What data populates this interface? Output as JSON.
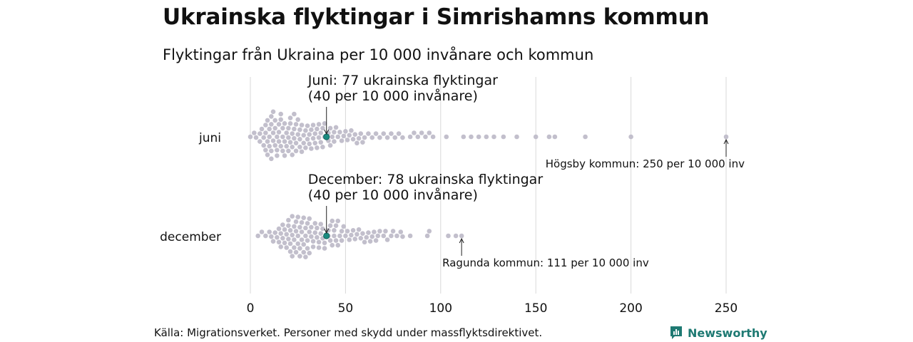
{
  "header": {
    "title": "Ukrainska flyktingar i Simrishamns kommun",
    "subtitle": "Flyktingar från Ukraina per 10 000 invånare och kommun"
  },
  "footer": {
    "source": "Källa: Migrationsverket. Personer med skydd under massflyktsdirektivet.",
    "logo_text": "Newsworthy"
  },
  "colors": {
    "dot": "#c2bfcc",
    "highlight": "#1a8a7f",
    "gridline": "#d9d9d9",
    "logo": "#1f7a73"
  },
  "chart_data": {
    "type": "scatter",
    "title": "Ukrainska flyktingar i Simrishamns kommun",
    "subtitle": "Flyktingar från Ukraina per 10 000 invånare och kommun",
    "xlim": [
      0,
      250
    ],
    "x_ticks": [
      "0",
      "50",
      "100",
      "150",
      "200",
      "250"
    ],
    "x_tick_values": [
      0,
      50,
      100,
      150,
      200,
      250
    ],
    "grid": true,
    "categories": [
      "juni",
      "december"
    ],
    "series": [
      {
        "name": "juni",
        "highlight": 40,
        "annotation": [
          "Juni: 77 ukrainska flyktingar",
          "(40 per 10 000 invånare)"
        ],
        "max_label": "Högsby kommun: 250 per 10 000 inv",
        "max_value": 250,
        "values": [
          0,
          2,
          3,
          5,
          5,
          6,
          7,
          7,
          8,
          8,
          8,
          9,
          9,
          9,
          10,
          10,
          10,
          11,
          11,
          11,
          11,
          12,
          12,
          12,
          13,
          13,
          13,
          14,
          14,
          14,
          15,
          15,
          15,
          16,
          16,
          16,
          17,
          17,
          17,
          18,
          18,
          18,
          19,
          19,
          20,
          20,
          20,
          21,
          21,
          21,
          22,
          22,
          22,
          23,
          23,
          23,
          24,
          24,
          24,
          25,
          25,
          26,
          26,
          26,
          27,
          27,
          28,
          28,
          29,
          29,
          30,
          30,
          31,
          31,
          32,
          32,
          33,
          33,
          34,
          34,
          35,
          35,
          36,
          36,
          37,
          37,
          38,
          38,
          39,
          39,
          41,
          41,
          42,
          42,
          43,
          44,
          44,
          45,
          46,
          47,
          48,
          49,
          50,
          51,
          52,
          53,
          54,
          55,
          56,
          57,
          58,
          59,
          60,
          62,
          64,
          66,
          68,
          70,
          72,
          74,
          76,
          78,
          80,
          84,
          86,
          88,
          90,
          92,
          94,
          96,
          103,
          112,
          116,
          120,
          124,
          128,
          133,
          140,
          150,
          157,
          160,
          176,
          200,
          250
        ]
      },
      {
        "name": "december",
        "highlight": 40,
        "annotation": [
          "December: 78 ukrainska flyktingar",
          "(40 per 10 000 invånare)"
        ],
        "max_label": "Ragunda kommun: 111 per 10 000 inv",
        "max_value": 111,
        "values": [
          4,
          6,
          8,
          10,
          11,
          12,
          13,
          14,
          15,
          15,
          16,
          16,
          17,
          17,
          18,
          18,
          19,
          19,
          20,
          20,
          20,
          21,
          21,
          21,
          22,
          22,
          22,
          23,
          23,
          23,
          24,
          24,
          24,
          25,
          25,
          25,
          26,
          26,
          26,
          27,
          27,
          27,
          28,
          28,
          28,
          29,
          29,
          29,
          30,
          30,
          30,
          31,
          31,
          31,
          32,
          32,
          33,
          33,
          34,
          34,
          35,
          35,
          36,
          36,
          37,
          37,
          38,
          38,
          39,
          39,
          41,
          41,
          42,
          42,
          43,
          43,
          44,
          44,
          45,
          45,
          46,
          46,
          47,
          48,
          48,
          49,
          50,
          51,
          52,
          53,
          54,
          55,
          56,
          57,
          58,
          59,
          60,
          61,
          62,
          63,
          64,
          65,
          66,
          67,
          68,
          70,
          71,
          72,
          74,
          75,
          77,
          79,
          80,
          84,
          93,
          94,
          104,
          108,
          111
        ]
      }
    ]
  }
}
